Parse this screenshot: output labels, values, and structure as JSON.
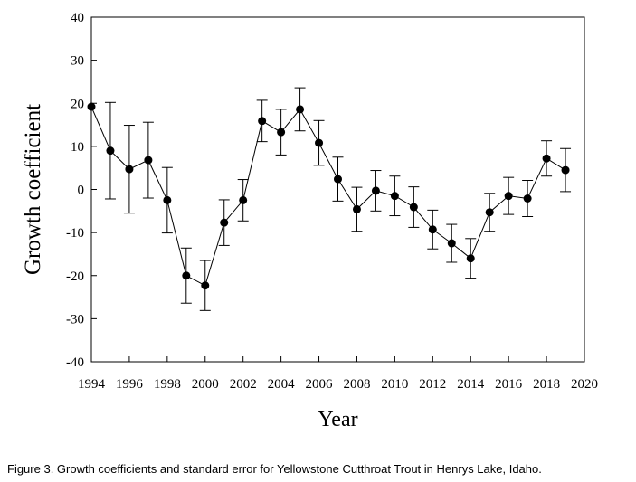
{
  "caption": "Figure 3. Growth coefficients and standard error for Yellowstone Cutthroat Trout in Henrys Lake, Idaho.",
  "chart_data": {
    "type": "line",
    "xlabel": "Year",
    "ylabel": "Growth coefficient",
    "xlim": [
      1994,
      2020
    ],
    "ylim": [
      -40,
      40
    ],
    "xticks": [
      1994,
      1996,
      1998,
      2000,
      2002,
      2004,
      2006,
      2008,
      2010,
      2012,
      2014,
      2016,
      2018,
      2020
    ],
    "yticks": [
      -40,
      -30,
      -20,
      -10,
      0,
      10,
      20,
      30,
      40
    ],
    "grid": false,
    "legend": "none",
    "marker": "filled-circle",
    "line_color": "#000000",
    "series": [
      {
        "x": [
          1994,
          1995,
          1996,
          1997,
          1998,
          1999,
          2000,
          2001,
          2002,
          2003,
          2004,
          2005,
          2006,
          2007,
          2008,
          2009,
          2010,
          2011,
          2012,
          2013,
          2014,
          2015,
          2016,
          2017,
          2018,
          2019
        ],
        "y": [
          19.2,
          9.0,
          4.7,
          6.8,
          -2.5,
          -20.0,
          -22.3,
          -7.7,
          -2.5,
          15.9,
          13.3,
          18.6,
          10.8,
          2.4,
          -4.6,
          -0.3,
          -1.5,
          -4.1,
          -9.3,
          -12.5,
          -16.0,
          -5.3,
          -1.5,
          -2.1,
          7.2,
          4.5
        ],
        "error": [
          0,
          11.2,
          10.2,
          8.8,
          7.6,
          6.4,
          5.8,
          5.3,
          4.8,
          4.8,
          5.3,
          5.0,
          5.2,
          5.1,
          5.1,
          4.7,
          4.6,
          4.7,
          4.5,
          4.4,
          4.6,
          4.4,
          4.3,
          4.2,
          4.1,
          5.0
        ]
      }
    ]
  }
}
